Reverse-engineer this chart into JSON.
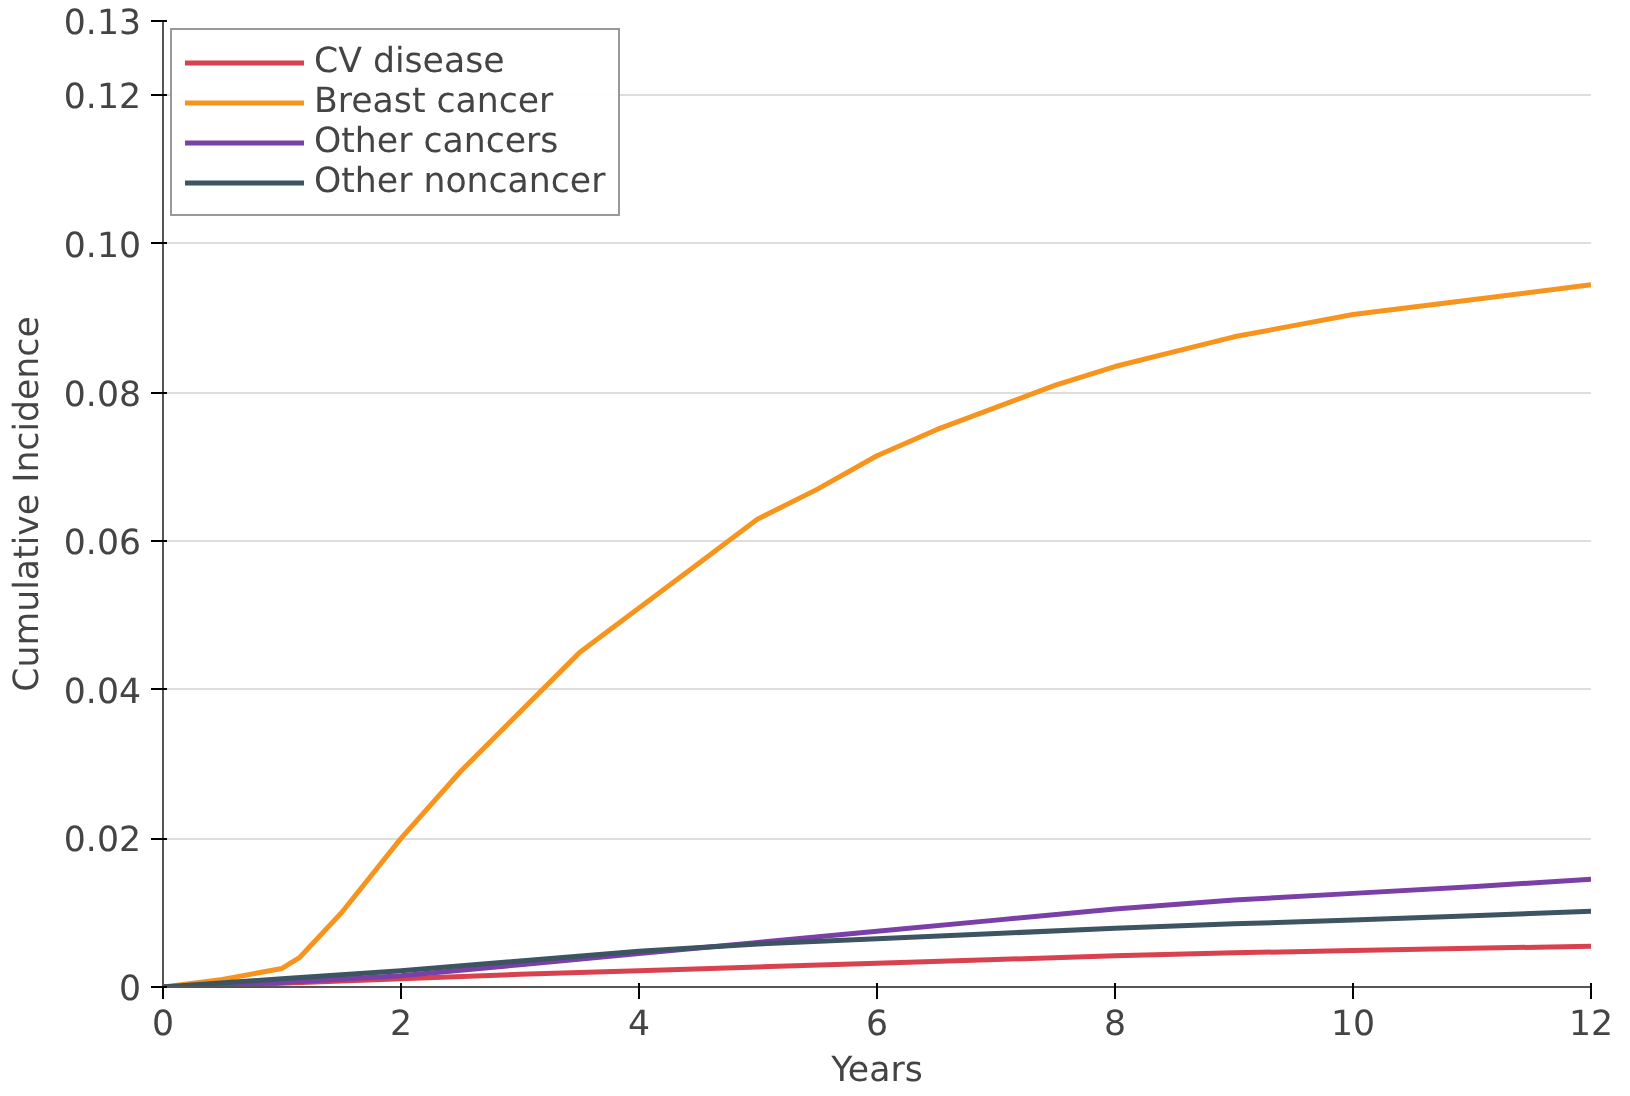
{
  "chart_data": {
    "type": "line",
    "xlabel": "Years",
    "ylabel": "Cumulative Incidence",
    "xlim": [
      0,
      12
    ],
    "xticks": [
      0,
      2,
      4,
      6,
      8,
      10,
      12
    ],
    "ylim": [
      0,
      0.13
    ],
    "yticks": [
      {
        "value": 0,
        "label": "0"
      },
      {
        "value": 0.02,
        "label": "0.02"
      },
      {
        "value": 0.04,
        "label": "0.04"
      },
      {
        "value": 0.06,
        "label": "0.06"
      },
      {
        "value": 0.08,
        "label": "0.08"
      },
      {
        "value": 0.1,
        "label": "0.10"
      },
      {
        "value": 0.12,
        "label": "0.12"
      },
      {
        "value": 0.13,
        "label": "0.13"
      }
    ],
    "grid": "y",
    "legend": "top left",
    "marker": "none",
    "line_style": "solid",
    "x": [
      0,
      1,
      2,
      3,
      4,
      5,
      6,
      7,
      8,
      9,
      10,
      11,
      12
    ],
    "series": [
      {
        "name": "CV disease",
        "color": "#d9414f",
        "values": [
          0,
          0.0005,
          0.0011,
          0.0017,
          0.0022,
          0.0027,
          0.0032,
          0.0037,
          0.0042,
          0.0046,
          0.0049,
          0.0052,
          0.0055
        ]
      },
      {
        "name": "Breast cancer",
        "color": "#f7941d",
        "x": [
          0,
          0.5,
          1,
          1.15,
          1.5,
          2,
          2.5,
          3,
          3.5,
          4,
          4.5,
          5,
          5.5,
          6,
          6.5,
          7,
          7.5,
          8,
          8.5,
          9,
          9.5,
          10,
          11,
          12
        ],
        "values": [
          0,
          0.001,
          0.0025,
          0.004,
          0.01,
          0.02,
          0.029,
          0.037,
          0.045,
          0.051,
          0.057,
          0.063,
          0.067,
          0.0715,
          0.075,
          0.078,
          0.081,
          0.0835,
          0.0855,
          0.0875,
          0.089,
          0.0905,
          0.0925,
          0.0945
        ]
      },
      {
        "name": "Other cancers",
        "color": "#7b3fa8",
        "values": [
          0,
          0.0006,
          0.0015,
          0.003,
          0.0045,
          0.006,
          0.0075,
          0.009,
          0.0105,
          0.0117,
          0.0126,
          0.0135,
          0.0145
        ]
      },
      {
        "name": "Other noncancer",
        "color": "#3d5462",
        "values": [
          0,
          0.0011,
          0.0022,
          0.0035,
          0.0048,
          0.0058,
          0.0065,
          0.0072,
          0.0079,
          0.0085,
          0.009,
          0.0096,
          0.0102
        ]
      }
    ]
  }
}
